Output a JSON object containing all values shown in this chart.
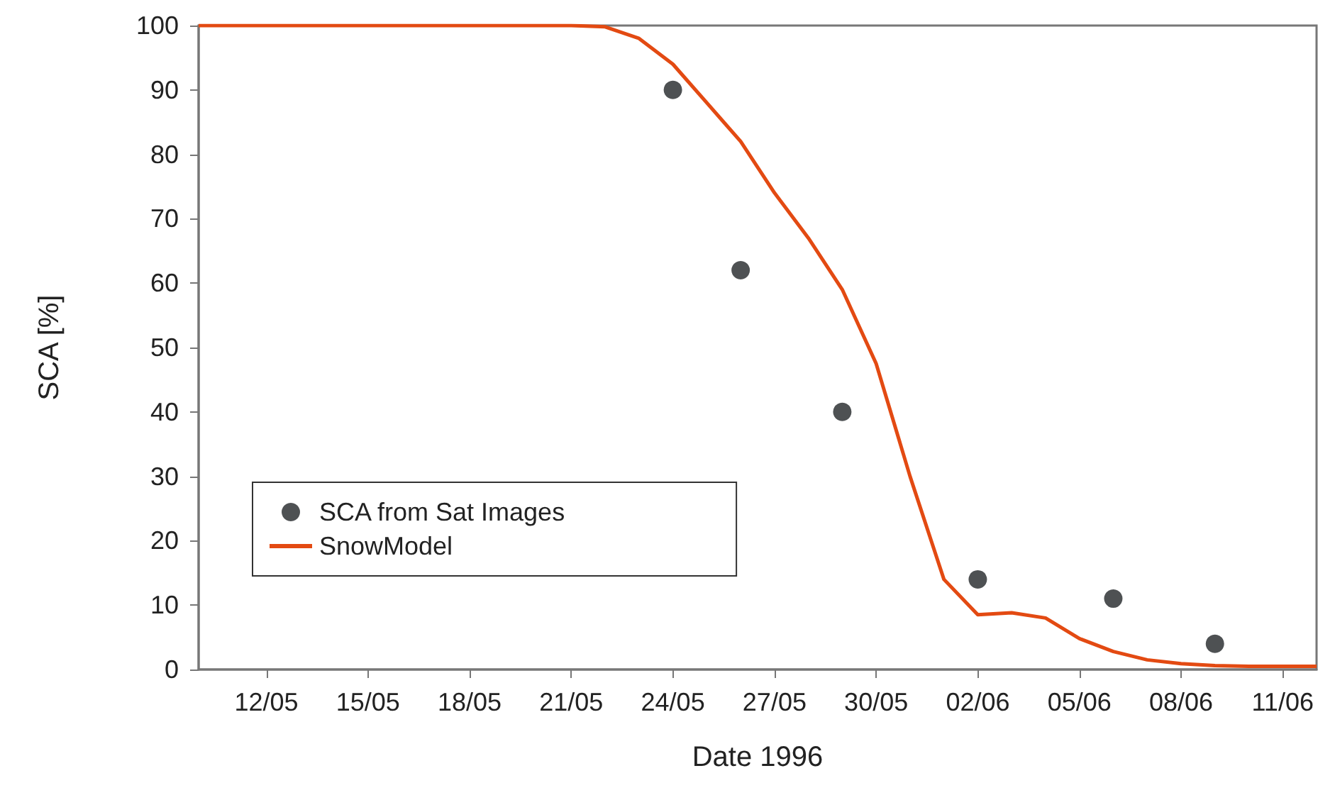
{
  "chart_data": {
    "type": "line",
    "xlabel": "Date 1996",
    "ylabel": "SCA [%]",
    "xlim": [
      "1996-05-10",
      "1996-06-12"
    ],
    "xticks": [
      {
        "value": "1996-05-12",
        "label": "12/05"
      },
      {
        "value": "1996-05-15",
        "label": "15/05"
      },
      {
        "value": "1996-05-18",
        "label": "18/05"
      },
      {
        "value": "1996-05-21",
        "label": "21/05"
      },
      {
        "value": "1996-05-24",
        "label": "24/05"
      },
      {
        "value": "1996-05-27",
        "label": "27/05"
      },
      {
        "value": "1996-05-30",
        "label": "30/05"
      },
      {
        "value": "1996-06-02",
        "label": "02/06"
      },
      {
        "value": "1996-06-05",
        "label": "05/06"
      },
      {
        "value": "1996-06-08",
        "label": "08/06"
      },
      {
        "value": "1996-06-11",
        "label": "11/06"
      }
    ],
    "ylim": [
      0,
      100
    ],
    "yticks": [
      0,
      10,
      20,
      30,
      40,
      50,
      60,
      70,
      80,
      90,
      100
    ],
    "grid": false,
    "legend": "bottom left",
    "series": [
      {
        "name": "SCA from Sat Images",
        "type": "scatter",
        "marker": "circle",
        "color": "#222528",
        "x": [
          "1996-05-24",
          "1996-05-26",
          "1996-05-29",
          "1996-06-02",
          "1996-06-06",
          "1996-06-09"
        ],
        "values": [
          90,
          62,
          40,
          14,
          11,
          4
        ]
      },
      {
        "name": "SnowModel",
        "marker": "none",
        "line_style": "solid",
        "color": "#e34a12",
        "x": [
          "1996-05-10",
          "1996-05-11",
          "1996-05-12",
          "1996-05-13",
          "1996-05-14",
          "1996-05-15",
          "1996-05-16",
          "1996-05-17",
          "1996-05-18",
          "1996-05-19",
          "1996-05-20",
          "1996-05-21",
          "1996-05-22",
          "1996-05-23",
          "1996-05-24",
          "1996-05-25",
          "1996-05-26",
          "1996-05-27",
          "1996-05-28",
          "1996-05-29",
          "1996-05-30",
          "1996-05-31",
          "1996-06-01",
          "1996-06-02",
          "1996-06-03",
          "1996-06-04",
          "1996-06-05",
          "1996-06-06",
          "1996-06-07",
          "1996-06-08",
          "1996-06-09",
          "1996-06-10",
          "1996-06-11",
          "1996-06-12"
        ],
        "values": [
          100,
          100,
          100,
          100,
          100,
          100,
          100,
          100,
          100,
          100,
          100,
          100,
          99.8,
          98,
          94,
          88,
          82,
          74,
          67,
          59,
          47.5,
          30,
          14,
          8.5,
          8.8,
          8,
          4.8,
          2.8,
          1.5,
          0.9,
          0.6,
          0.5,
          0.5,
          0.5
        ]
      }
    ]
  }
}
